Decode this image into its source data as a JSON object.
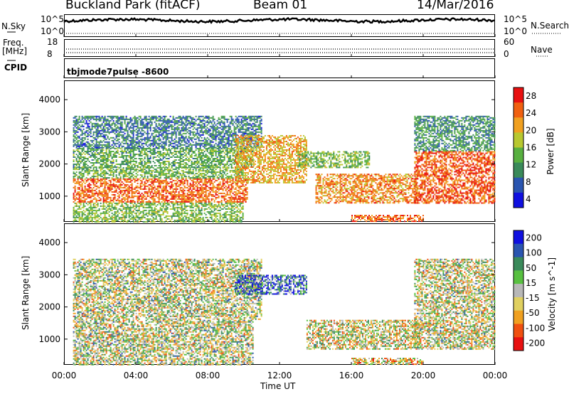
{
  "header": {
    "station": "Buckland Park (fitACF)",
    "beam": "Beam 01",
    "date": "14/Mar/2016"
  },
  "noise_panel": {
    "left_label": "N.Sky",
    "right_label": "N.Search",
    "ticks": [
      "10^5",
      "10^0"
    ],
    "right_ticks": [
      "10^5",
      "10^0"
    ]
  },
  "freq_panel": {
    "left_label_1": "Freq.",
    "left_label_2": "[MHz]",
    "left_ticks": [
      "18",
      "8"
    ],
    "right_label": "Nave",
    "right_ticks": [
      "60",
      "0"
    ]
  },
  "cpid_panel": {
    "label": "CPID",
    "mode": "tbjmode7pulse -8600"
  },
  "chart_data": [
    {
      "type": "heatmap",
      "quantity": "Power",
      "ylabel": "Slant Range [km]",
      "ylim": [
        200,
        4600
      ],
      "yticks": [
        "4000",
        "3000",
        "2000",
        "1000"
      ],
      "colorbar_label": "Power [dB]",
      "colorbar_ticks": [
        "28",
        "24",
        "20",
        "16",
        "12",
        "8",
        "4"
      ],
      "colorbar_range": [
        0,
        30
      ],
      "colors": [
        "#1010e0",
        "#2a55b0",
        "#3a8a5a",
        "#58b040",
        "#b8c830",
        "#f0a020",
        "#f06010",
        "#e81010"
      ],
      "echo_regions": [
        {
          "t0": 0.5,
          "t1": 10.2,
          "r0": 800,
          "r1": 1550,
          "level": 24
        },
        {
          "t0": 0.5,
          "t1": 10.0,
          "r0": 1550,
          "r1": 1900,
          "level": 13
        },
        {
          "t0": 0.5,
          "t1": 10.5,
          "r0": 1900,
          "r1": 2500,
          "level": 12
        },
        {
          "t0": 0.5,
          "t1": 11.0,
          "r0": 2500,
          "r1": 3500,
          "level": 8
        },
        {
          "t0": 9.5,
          "t1": 13.5,
          "r0": 1400,
          "r1": 2900,
          "level": 20
        },
        {
          "t0": 13.0,
          "t1": 17.0,
          "r0": 1900,
          "r1": 2400,
          "level": 14
        },
        {
          "t0": 14.0,
          "t1": 19.7,
          "r0": 800,
          "r1": 1700,
          "level": 22
        },
        {
          "t0": 16.0,
          "t1": 20.0,
          "r0": 200,
          "r1": 420,
          "level": 24
        },
        {
          "t0": 19.5,
          "t1": 24.0,
          "r0": 800,
          "r1": 2400,
          "level": 25
        },
        {
          "t0": 19.5,
          "t1": 24.0,
          "r0": 2400,
          "r1": 3500,
          "level": 10
        },
        {
          "t0": 0.5,
          "t1": 10.0,
          "r0": 200,
          "r1": 800,
          "level": 14
        }
      ]
    },
    {
      "type": "heatmap",
      "quantity": "Velocity",
      "ylabel": "Slant Range [km]",
      "ylim": [
        200,
        4600
      ],
      "yticks": [
        "4000",
        "3000",
        "2000",
        "1000"
      ],
      "xticks": [
        "00:00",
        "04:00",
        "08:00",
        "12:00",
        "16:00",
        "20:00",
        "00:00"
      ],
      "xlabel": "Time UT",
      "colorbar_label": "Velocity [m s^-1]",
      "colorbar_ticks": [
        "200",
        "100",
        "50",
        "15",
        "-15",
        "-50",
        "-100",
        "-200"
      ],
      "colorbar_range": [
        -250,
        250
      ],
      "colors": [
        "#e81010",
        "#f05010",
        "#f0a020",
        "#e0d060",
        "#b8b8b8",
        "#58c040",
        "#3a8a5a",
        "#2a55b0",
        "#1010e0"
      ],
      "echo_regions": [
        {
          "t0": 0.5,
          "t1": 10.5,
          "r0": 200,
          "r1": 1600,
          "level": 0
        },
        {
          "t0": 0.5,
          "t1": 11.0,
          "r0": 1600,
          "r1": 3500,
          "level": 0
        },
        {
          "t0": 9.5,
          "t1": 13.5,
          "r0": 2400,
          "r1": 3000,
          "level": 150
        },
        {
          "t0": 13.5,
          "t1": 19.8,
          "r0": 700,
          "r1": 1600,
          "level": -20
        },
        {
          "t0": 19.5,
          "t1": 24.0,
          "r0": 700,
          "r1": 3500,
          "level": -10
        },
        {
          "t0": 16.0,
          "t1": 20.0,
          "r0": 200,
          "r1": 420,
          "level": -60
        }
      ]
    }
  ]
}
